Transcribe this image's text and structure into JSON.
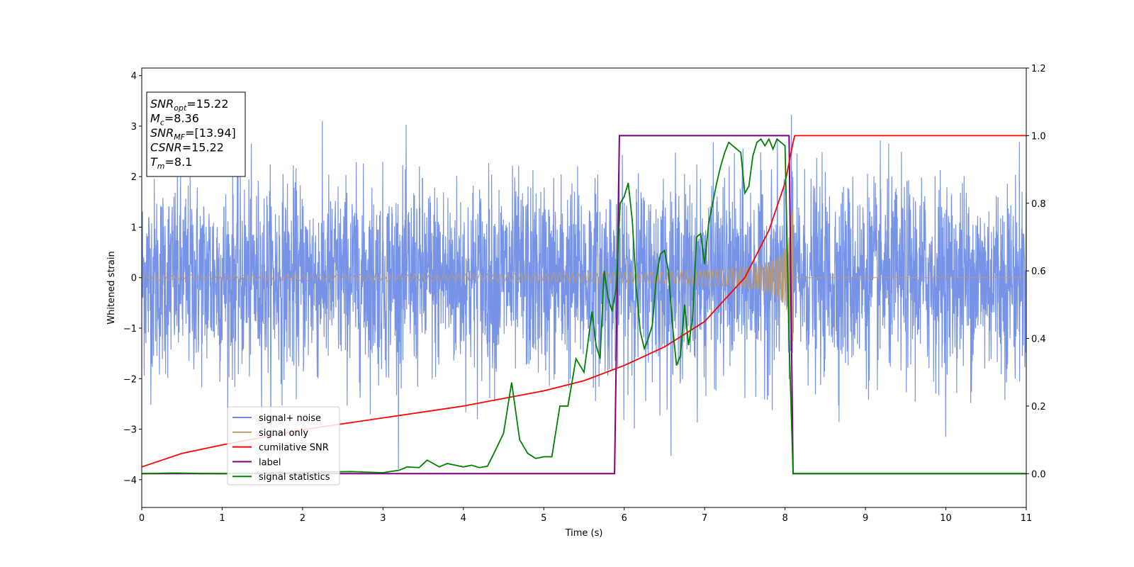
{
  "chart_data": {
    "type": "line",
    "title": "",
    "xlabel": "Time (s)",
    "ylabel": "Whitened strain",
    "xlim": [
      0,
      11
    ],
    "ylim": [
      -4.55,
      4.15
    ],
    "y2lim": [
      -0.1,
      1.2
    ],
    "xticks": [
      "0",
      "1",
      "2",
      "3",
      "4",
      "5",
      "6",
      "7",
      "8",
      "9",
      "10",
      "11"
    ],
    "yticks": [
      "−4",
      "−3",
      "−2",
      "−1",
      "0",
      "1",
      "2",
      "3",
      "4"
    ],
    "y2ticks": [
      "0.0",
      "0.2",
      "0.4",
      "0.6",
      "0.8",
      "1.0",
      "1.2"
    ],
    "grid": false,
    "legend_position": "lower-left",
    "info_box": {
      "lines": [
        {
          "main": "SNR",
          "sub": "opt",
          "value": "=15.22"
        },
        {
          "main": "M",
          "sub": "c",
          "value": "=8.36"
        },
        {
          "main": "SNR",
          "sub": "MF",
          "value": "=[13.94]"
        },
        {
          "main": "CSNR",
          "sub": "",
          "value": "=15.22"
        },
        {
          "main": "T",
          "sub": "m",
          "value": "=8.1"
        }
      ]
    },
    "series": [
      {
        "name": "signal+ noise",
        "color": "#6f8de6",
        "axis": "left",
        "noise_sigma": 0.95,
        "spike_max": 3.75,
        "spike_min": -4.2,
        "merger_time": 8.1
      },
      {
        "name": "signal only",
        "color": "#bf9a6b",
        "axis": "left",
        "chirp_start_amp": 0.05,
        "chirp_peak_amp": 1.4,
        "merger_time": 8.1
      },
      {
        "name": "cumilative SNR",
        "color": "#ff0000",
        "axis": "right",
        "x": [
          0,
          0.5,
          1,
          2,
          3,
          4,
          5,
          5.5,
          6,
          6.5,
          7,
          7.5,
          7.8,
          8.0,
          8.1,
          8.12,
          11
        ],
        "values": [
          0.02,
          0.06,
          0.085,
          0.13,
          0.165,
          0.2,
          0.245,
          0.275,
          0.32,
          0.375,
          0.45,
          0.58,
          0.72,
          0.86,
          0.98,
          1.0,
          1.0
        ]
      },
      {
        "name": "label",
        "color": "#800080",
        "axis": "right",
        "x": [
          0,
          5.88,
          5.94,
          8.05,
          8.1,
          11
        ],
        "values": [
          0,
          0,
          1,
          1,
          0,
          0
        ]
      },
      {
        "name": "signal statistics",
        "color": "#008000",
        "axis": "right",
        "x": [
          0,
          0.4,
          1,
          2,
          2.6,
          3,
          3.2,
          3.3,
          3.45,
          3.55,
          3.7,
          3.8,
          3.9,
          4.0,
          4.1,
          4.2,
          4.3,
          4.4,
          4.5,
          4.6,
          4.7,
          4.8,
          4.9,
          5.0,
          5.1,
          5.2,
          5.3,
          5.4,
          5.45,
          5.5,
          5.6,
          5.65,
          5.7,
          5.75,
          5.8,
          5.85,
          5.9,
          5.95,
          6.0,
          6.05,
          6.1,
          6.15,
          6.2,
          6.25,
          6.3,
          6.35,
          6.4,
          6.45,
          6.5,
          6.55,
          6.6,
          6.65,
          6.7,
          6.75,
          6.8,
          6.85,
          6.9,
          6.95,
          7.0,
          7.05,
          7.1,
          7.15,
          7.2,
          7.25,
          7.3,
          7.35,
          7.4,
          7.45,
          7.5,
          7.55,
          7.6,
          7.65,
          7.7,
          7.75,
          7.8,
          7.85,
          7.9,
          7.95,
          8.0,
          8.05,
          8.1,
          8.12,
          8.15,
          11
        ],
        "values": [
          0,
          0.002,
          0.0,
          0.004,
          0.006,
          0.003,
          0.01,
          0.02,
          0.018,
          0.04,
          0.02,
          0.03,
          0.025,
          0.02,
          0.025,
          0.018,
          0.022,
          0.07,
          0.12,
          0.27,
          0.1,
          0.06,
          0.045,
          0.05,
          0.05,
          0.2,
          0.2,
          0.34,
          0.32,
          0.3,
          0.48,
          0.38,
          0.34,
          0.6,
          0.52,
          0.48,
          0.55,
          0.8,
          0.82,
          0.86,
          0.75,
          0.55,
          0.42,
          0.37,
          0.4,
          0.44,
          0.58,
          0.65,
          0.66,
          0.6,
          0.44,
          0.32,
          0.35,
          0.5,
          0.38,
          0.46,
          0.7,
          0.71,
          0.62,
          0.74,
          0.8,
          0.86,
          0.91,
          0.95,
          0.98,
          0.97,
          0.96,
          0.95,
          0.83,
          0.85,
          0.94,
          0.98,
          0.99,
          0.97,
          0.99,
          0.96,
          0.99,
          0.98,
          0.97,
          0.4,
          0.0,
          0.0,
          0.0,
          0.0
        ]
      }
    ]
  }
}
